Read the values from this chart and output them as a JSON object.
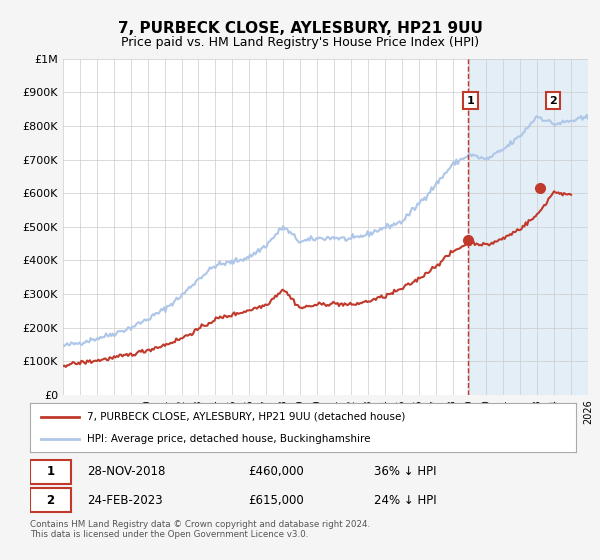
{
  "title": "7, PURBECK CLOSE, AYLESBURY, HP21 9UU",
  "subtitle": "Price paid vs. HM Land Registry's House Price Index (HPI)",
  "ylim": [
    0,
    1000000
  ],
  "xlim": [
    1995,
    2026
  ],
  "yticks": [
    0,
    100000,
    200000,
    300000,
    400000,
    500000,
    600000,
    700000,
    800000,
    900000,
    1000000
  ],
  "ytick_labels": [
    "£0",
    "£100K",
    "£200K",
    "£300K",
    "£400K",
    "£500K",
    "£600K",
    "£700K",
    "£800K",
    "£900K",
    "£1M"
  ],
  "hpi_color": "#aec6e8",
  "price_color": "#c0392b",
  "marker_color": "#c0392b",
  "bg_color": "#f5f5f5",
  "plot_bg_color": "#ffffff",
  "shade_color": "#dce9f5",
  "vline_color": "#c0392b",
  "sale1_x": 2018.91,
  "sale1_y": 460000,
  "sale2_x": 2023.15,
  "sale2_y": 615000,
  "legend_label_price": "7, PURBECK CLOSE, AYLESBURY, HP21 9UU (detached house)",
  "legend_label_hpi": "HPI: Average price, detached house, Buckinghamshire",
  "table_row1": [
    "1",
    "28-NOV-2018",
    "£460,000",
    "36% ↓ HPI"
  ],
  "table_row2": [
    "2",
    "24-FEB-2023",
    "£615,000",
    "24% ↓ HPI"
  ],
  "footer": "Contains HM Land Registry data © Crown copyright and database right 2024.\nThis data is licensed under the Open Government Licence v3.0.",
  "grid_color": "#cccccc",
  "hpi_base_years": [
    1995,
    1996,
    1997,
    1998,
    1999,
    2000,
    2001,
    2002,
    2003,
    2004,
    2005,
    2006,
    2007,
    2008,
    2009,
    2010,
    2011,
    2012,
    2013,
    2014,
    2015,
    2016,
    2017,
    2018,
    2019,
    2020,
    2021,
    2022,
    2023,
    2024,
    2025,
    2026
  ],
  "hpi_base_vals": [
    145000,
    155000,
    168000,
    182000,
    200000,
    225000,
    255000,
    295000,
    345000,
    385000,
    395000,
    410000,
    445000,
    500000,
    455000,
    465000,
    468000,
    462000,
    478000,
    498000,
    515000,
    568000,
    625000,
    685000,
    715000,
    700000,
    730000,
    770000,
    830000,
    805000,
    815000,
    825000
  ],
  "price_base_years": [
    1995,
    1996,
    1997,
    1998,
    1999,
    2000,
    2001,
    2002,
    2003,
    2004,
    2005,
    2006,
    2007,
    2008,
    2009,
    2010,
    2011,
    2012,
    2013,
    2014,
    2015,
    2016,
    2017,
    2018,
    2019,
    2020,
    2021,
    2022,
    2023,
    2024,
    2025
  ],
  "price_base_vals": [
    88000,
    95000,
    102000,
    110000,
    120000,
    133000,
    148000,
    168000,
    195000,
    225000,
    238000,
    252000,
    268000,
    315000,
    258000,
    268000,
    272000,
    267000,
    278000,
    293000,
    315000,
    345000,
    383000,
    425000,
    455000,
    445000,
    465000,
    495000,
    535000,
    605000,
    592000
  ]
}
